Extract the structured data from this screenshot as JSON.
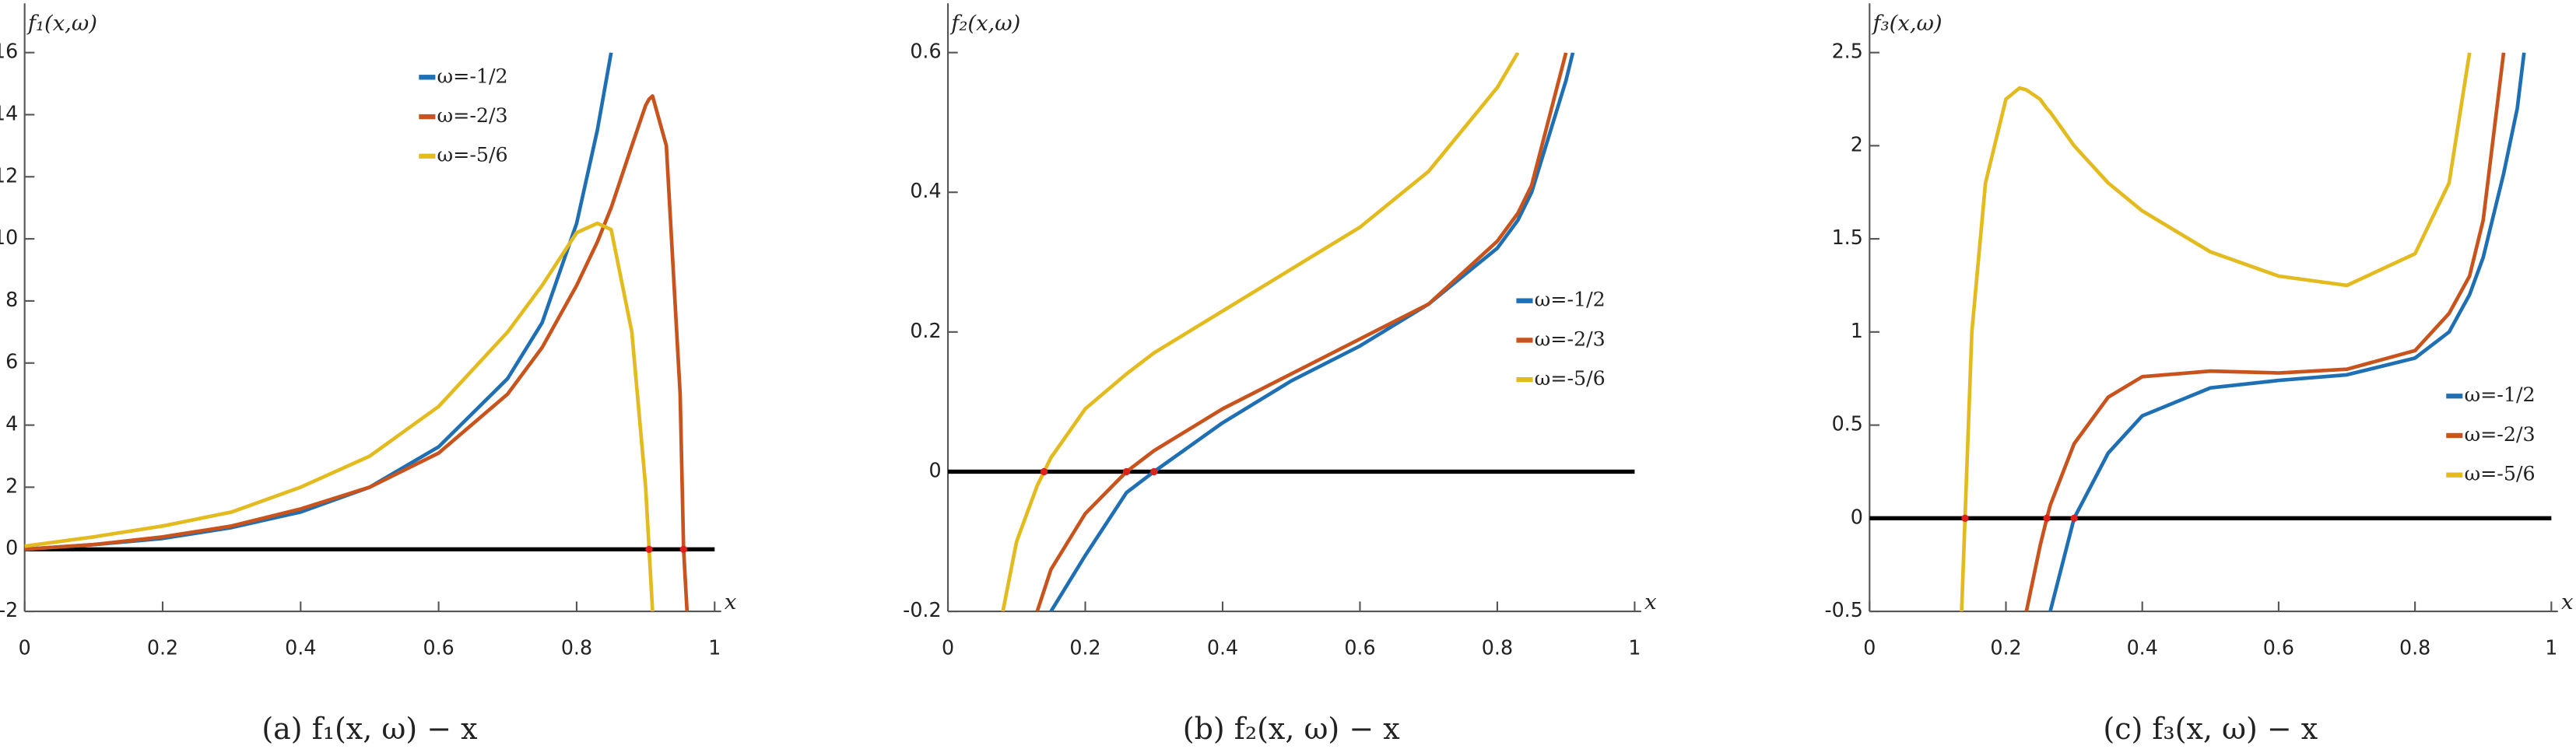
{
  "chart_data": [
    {
      "type": "line",
      "caption": "(a)  f₁(x, ω) − x",
      "ylabel": "f₁(x,ω)",
      "xlabel": "x",
      "x": [
        0,
        0.1,
        0.2,
        0.3,
        0.4,
        0.5,
        0.6,
        0.7,
        0.75,
        0.8,
        0.83,
        0.85,
        0.88,
        0.9,
        0.905,
        0.91,
        0.93,
        0.95,
        0.955,
        0.96
      ],
      "series": [
        {
          "name": "ω=-1/2",
          "color": "#1f6fb4",
          "values": [
            0,
            0.15,
            0.35,
            0.7,
            1.2,
            2.0,
            3.3,
            5.5,
            7.3,
            10.5,
            13.5,
            16,
            null,
            null,
            null,
            null,
            null,
            null,
            null,
            null
          ]
        },
        {
          "name": "ω=-2/3",
          "color": "#c8531c",
          "values": [
            0,
            0.15,
            0.4,
            0.75,
            1.3,
            2,
            3.1,
            5,
            6.5,
            8.5,
            9.9,
            11,
            13,
            14.3,
            14.5,
            14.6,
            13,
            5,
            0,
            -2
          ]
        },
        {
          "name": "ω=-5/6",
          "color": "#e3bb1e",
          "values": [
            0.1,
            0.4,
            0.75,
            1.2,
            2,
            3,
            4.6,
            7,
            8.5,
            10.2,
            10.5,
            10.3,
            7,
            2,
            0,
            -2,
            null,
            null,
            null,
            null
          ]
        }
      ],
      "roots": [
        0.905,
        0.955
      ],
      "xlim": [
        0,
        1
      ],
      "xticks": [
        0,
        0.2,
        0.4,
        0.6,
        0.8,
        1
      ],
      "ylim": [
        -2,
        16
      ],
      "yticks": [
        -2,
        0,
        2,
        4,
        6,
        8,
        10,
        12,
        14,
        16
      ],
      "legend": "upper center"
    },
    {
      "type": "line",
      "caption": "(b)  f₂(x, ω) − x",
      "ylabel": "f₂(x,ω)",
      "xlabel": "x",
      "x": [
        0.08,
        0.1,
        0.13,
        0.14,
        0.15,
        0.2,
        0.26,
        0.3,
        0.4,
        0.5,
        0.6,
        0.7,
        0.8,
        0.83,
        0.85,
        0.9,
        0.91
      ],
      "series": [
        {
          "name": "ω=-1/2",
          "color": "#1f6fb4",
          "values": [
            null,
            null,
            null,
            null,
            -0.2,
            -0.12,
            -0.03,
            0,
            0.07,
            0.13,
            0.18,
            0.24,
            0.32,
            0.36,
            0.4,
            0.56,
            0.6
          ]
        },
        {
          "name": "ω=-2/3",
          "color": "#c8531c",
          "values": [
            null,
            null,
            -0.2,
            -0.17,
            -0.14,
            -0.06,
            0,
            0.03,
            0.09,
            0.14,
            0.19,
            0.24,
            0.33,
            0.37,
            0.41,
            0.6,
            null
          ]
        },
        {
          "name": "ω=-5/6",
          "color": "#e3bb1e",
          "values": [
            -0.2,
            -0.1,
            -0.02,
            0,
            0.02,
            0.09,
            0.14,
            0.17,
            0.23,
            0.29,
            0.35,
            0.43,
            0.55,
            0.6,
            null,
            null,
            null
          ]
        }
      ],
      "roots": [
        0.14,
        0.26,
        0.3
      ],
      "xlim": [
        0,
        1
      ],
      "xticks": [
        0,
        0.2,
        0.4,
        0.6,
        0.8,
        1
      ],
      "ylim": [
        -0.2,
        0.6
      ],
      "yticks": [
        -0.2,
        0,
        0.2,
        0.4,
        0.6
      ],
      "legend": "center right"
    },
    {
      "type": "line",
      "caption": "(c)  f₃(x, ω) − x",
      "ylabel": "f₃(x,ω)",
      "xlabel": "x",
      "x": [
        0.135,
        0.14,
        0.15,
        0.17,
        0.2,
        0.22,
        0.23,
        0.25,
        0.26,
        0.265,
        0.3,
        0.35,
        0.4,
        0.5,
        0.6,
        0.7,
        0.8,
        0.85,
        0.88,
        0.9,
        0.93,
        0.95,
        0.96
      ],
      "series": [
        {
          "name": "ω=-1/2",
          "color": "#1f6fb4",
          "values": [
            null,
            null,
            null,
            null,
            null,
            null,
            null,
            null,
            null,
            -0.5,
            0,
            0.35,
            0.55,
            0.7,
            0.74,
            0.77,
            0.86,
            1.0,
            1.2,
            1.4,
            1.85,
            2.2,
            2.5
          ]
        },
        {
          "name": "ω=-2/3",
          "color": "#c8531c",
          "values": [
            null,
            null,
            null,
            null,
            null,
            null,
            -0.5,
            -0.15,
            0,
            0.07,
            0.4,
            0.65,
            0.76,
            0.79,
            0.78,
            0.8,
            0.9,
            1.1,
            1.3,
            1.6,
            2.5,
            null,
            null
          ]
        },
        {
          "name": "ω=-5/6",
          "color": "#e3bb1e",
          "values": [
            -0.5,
            0,
            1.0,
            1.8,
            2.25,
            2.31,
            2.3,
            2.25,
            2.2,
            2.18,
            2.0,
            1.8,
            1.65,
            1.43,
            1.3,
            1.25,
            1.42,
            1.8,
            2.5,
            null,
            null,
            null,
            null
          ]
        }
      ],
      "roots": [
        0.14,
        0.26,
        0.3
      ],
      "xlim": [
        0,
        1
      ],
      "xticks": [
        0,
        0.2,
        0.4,
        0.6,
        0.8,
        1
      ],
      "ylim": [
        -0.5,
        2.5
      ],
      "yticks": [
        -0.5,
        0,
        0.5,
        1,
        1.5,
        2,
        2.5
      ],
      "legend": "lower right"
    }
  ]
}
